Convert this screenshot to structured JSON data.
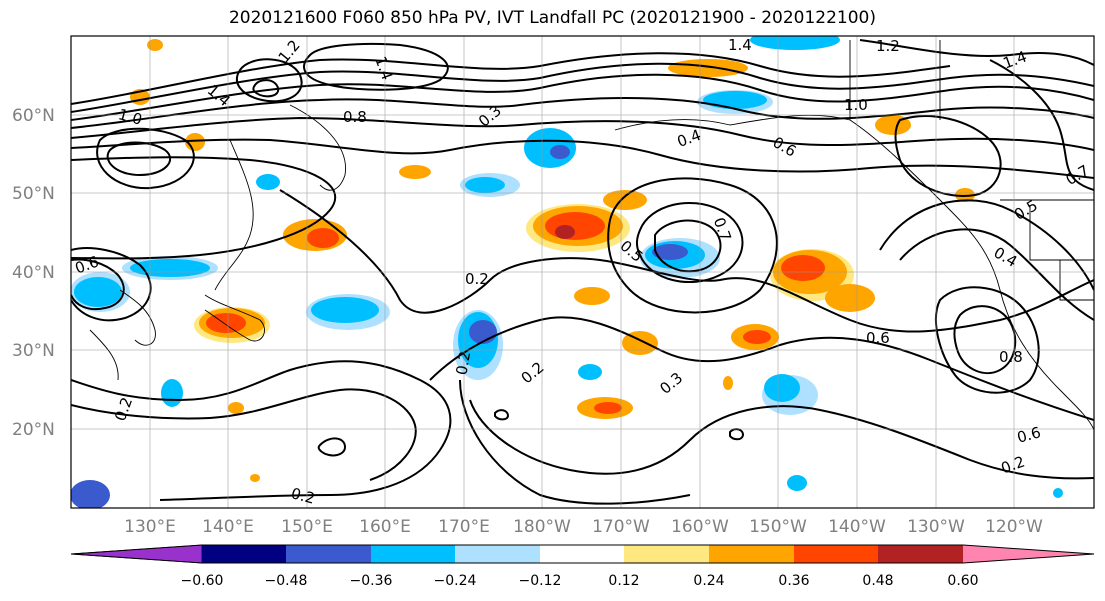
{
  "title": "2020121600 F060 850 hPa PV, IVT Landfall PC (2020121900 - 2020122100)",
  "map": {
    "lon_ticks": [
      "130°E",
      "140°E",
      "150°E",
      "160°E",
      "170°E",
      "180°W",
      "170°W",
      "160°W",
      "150°W",
      "140°W",
      "130°W",
      "120°W"
    ],
    "lat_ticks": [
      "60°N",
      "50°N",
      "40°N",
      "30°N",
      "20°N"
    ],
    "contour_labels": [
      "1.4",
      "1.2",
      "1.4",
      "1.2",
      "1.4",
      "0.8",
      "0.3",
      "0.4",
      "0.6",
      "0.2",
      "0.2",
      "0.3",
      "0.2",
      "0.5",
      "0.7",
      "0.6",
      "0.8",
      "0.2",
      "0.2",
      "0.6",
      "0.4",
      "0.5",
      "1.0",
      "0.7",
      "1.0",
      "1.4",
      "0.6",
      "0.2"
    ],
    "colorbar": {
      "tick_labels": [
        "−0.60",
        "−0.48",
        "−0.36",
        "−0.24",
        "−0.12",
        "0.12",
        "0.24",
        "0.36",
        "0.48",
        "0.60"
      ],
      "colors": [
        "#9932cc",
        "#000080",
        "#3a5acd",
        "#00bfff",
        "#aee0ff",
        "#ffffff",
        "#ffe880",
        "#ffa500",
        "#ff4500",
        "#b22222",
        "#ff85b0"
      ]
    }
  }
}
